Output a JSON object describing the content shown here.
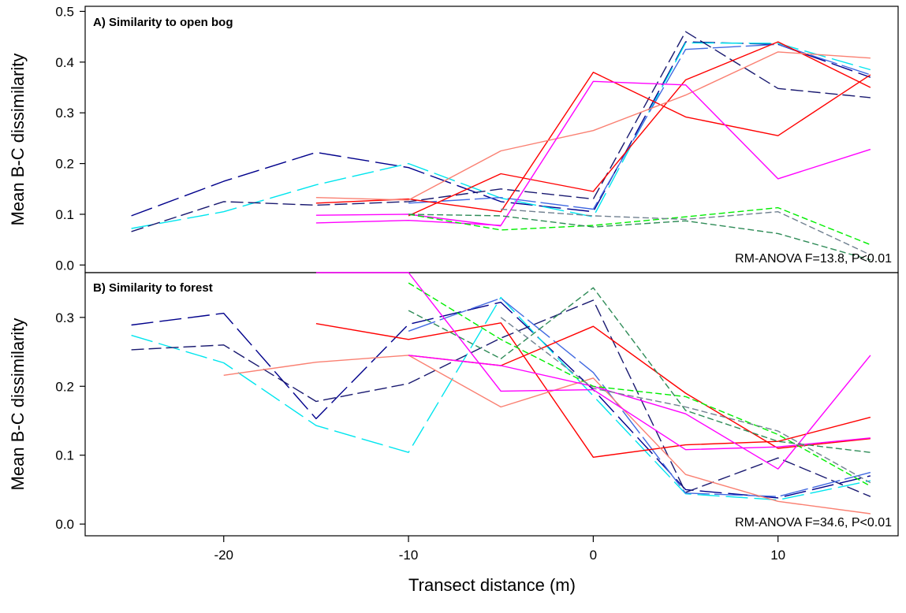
{
  "chart_data": [
    {
      "type": "line",
      "panel": "A",
      "title": "A) Similarity to open bog",
      "ylabel": "Mean B-C dissimilarity",
      "xlabel": "",
      "annotation": "RM-ANOVA F=13.8, P<0.01",
      "xlim": [
        -27.5,
        16.5
      ],
      "ylim": [
        -0.015,
        0.51
      ],
      "yticks": [
        0.0,
        0.1,
        0.2,
        0.3,
        0.4,
        0.5
      ],
      "ytick_labels": [
        "0.0",
        "0.1",
        "0.2",
        "0.3",
        "0.4",
        "0.5"
      ],
      "series": [
        {
          "color": "#00008b",
          "dash": "28,8",
          "x": [
            -25,
            -20,
            -15,
            -10,
            -5,
            0,
            5,
            10,
            15
          ],
          "y": [
            0.097,
            0.165,
            0.222,
            0.192,
            0.125,
            0.105,
            0.44,
            0.435,
            0.37
          ]
        },
        {
          "color": "#00e5ee",
          "dash": "28,8",
          "x": [
            -25,
            -20,
            -15,
            -10,
            -5,
            0,
            5,
            10,
            15
          ],
          "y": [
            0.072,
            0.105,
            0.158,
            0.2,
            0.132,
            0.095,
            0.438,
            0.437,
            0.385
          ]
        },
        {
          "color": "#191970",
          "dash": "16,6",
          "x": [
            -25,
            -20,
            -15,
            -10,
            -5,
            0,
            5,
            10,
            15
          ],
          "y": [
            0.066,
            0.125,
            0.118,
            0.125,
            0.15,
            0.13,
            0.46,
            0.348,
            0.33
          ]
        },
        {
          "color": "#4169e1",
          "dash": "36,6",
          "x": [
            -10,
            -5,
            0,
            5,
            10,
            15
          ],
          "y": [
            0.122,
            0.133,
            0.11,
            0.425,
            0.435,
            0.375
          ]
        },
        {
          "color": "#ff0000",
          "dash": "",
          "x": [
            -15,
            -10,
            -5,
            0,
            5,
            10,
            15
          ],
          "y": [
            0.122,
            0.13,
            0.105,
            0.38,
            0.292,
            0.255,
            0.375
          ]
        },
        {
          "color": "#ff0000",
          "dash": "",
          "x": [
            -10,
            -5,
            0,
            5,
            10,
            15
          ],
          "y": [
            0.097,
            0.18,
            0.145,
            0.365,
            0.44,
            0.35
          ]
        },
        {
          "color": "#fa8072",
          "dash": "",
          "x": [
            -15,
            -10,
            -5,
            0,
            5,
            10,
            15
          ],
          "y": [
            0.133,
            0.128,
            0.225,
            0.265,
            0.335,
            0.42,
            0.408
          ]
        },
        {
          "color": "#ff00ff",
          "dash": "",
          "x": [
            -15,
            -10,
            -5,
            0,
            5,
            10,
            15
          ],
          "y": [
            0.083,
            0.088,
            0.078,
            0.362,
            0.355,
            0.17,
            0.228
          ]
        },
        {
          "color": "#ff00ff",
          "dash": "",
          "x": [
            -15,
            -10,
            -5
          ],
          "y": [
            0.098,
            0.1,
            0.077
          ]
        },
        {
          "color": "#00ee00",
          "dash": "8,4",
          "x": [
            -10,
            -5,
            0,
            5,
            10,
            15
          ],
          "y": [
            0.1,
            0.069,
            0.078,
            0.095,
            0.113,
            0.04
          ]
        },
        {
          "color": "#2e8b57",
          "dash": "8,4",
          "x": [
            -10,
            -5,
            0,
            5,
            10,
            15
          ],
          "y": [
            0.1,
            0.097,
            0.075,
            0.087,
            0.062,
            0.01
          ]
        },
        {
          "color": "#708090",
          "dash": "8,4",
          "x": [
            -5,
            0,
            5,
            10,
            15
          ],
          "y": [
            0.11,
            0.097,
            0.09,
            0.105,
            0.02
          ]
        }
      ]
    },
    {
      "type": "line",
      "panel": "B",
      "title": "B) Similarity to forest",
      "ylabel": "Mean B-C dissimilarity",
      "xlabel": "Transect distance (m)",
      "annotation": "RM-ANOVA F=34.6, P<0.01",
      "xlim": [
        -27.5,
        16.5
      ],
      "ylim": [
        -0.017,
        0.365
      ],
      "yticks": [
        0.0,
        0.1,
        0.2,
        0.3
      ],
      "ytick_labels": [
        "0.0",
        "0.1",
        "0.2",
        "0.3"
      ],
      "xticks": [
        -20,
        -10,
        0,
        10
      ],
      "xtick_labels": [
        "-20",
        "-10",
        "0",
        "10"
      ],
      "series": [
        {
          "color": "#00008b",
          "dash": "28,8",
          "x": [
            -25,
            -20,
            -15,
            -10,
            -5,
            0,
            5,
            10,
            15
          ],
          "y": [
            0.289,
            0.306,
            0.153,
            0.29,
            0.322,
            0.195,
            0.05,
            0.038,
            0.07
          ]
        },
        {
          "color": "#00e5ee",
          "dash": "28,8",
          "x": [
            -25,
            -20,
            -15,
            -10,
            -5,
            0,
            5,
            10,
            15
          ],
          "y": [
            0.274,
            0.234,
            0.143,
            0.104,
            0.329,
            0.186,
            0.044,
            0.035,
            0.063
          ]
        },
        {
          "color": "#191970",
          "dash": "16,6",
          "x": [
            -25,
            -20,
            -15,
            -10,
            -5,
            0,
            5,
            10,
            15
          ],
          "y": [
            0.253,
            0.26,
            0.178,
            0.204,
            0.27,
            0.325,
            0.046,
            0.096,
            0.04
          ]
        },
        {
          "color": "#4169e1",
          "dash": "36,6",
          "x": [
            -10,
            -5,
            0,
            5,
            10,
            15
          ],
          "y": [
            0.28,
            0.328,
            0.22,
            0.045,
            0.04,
            0.075
          ]
        },
        {
          "color": "#ff0000",
          "dash": "",
          "x": [
            -15,
            -10,
            -5,
            0,
            5,
            10,
            15
          ],
          "y": [
            0.291,
            0.268,
            0.292,
            0.097,
            0.115,
            0.12,
            0.155
          ]
        },
        {
          "color": "#ff0000",
          "dash": "",
          "x": [
            -10,
            -5,
            0,
            5,
            10,
            15
          ],
          "y": [
            0.245,
            0.23,
            0.287,
            0.19,
            0.11,
            0.124
          ]
        },
        {
          "color": "#fa8072",
          "dash": "",
          "x": [
            -20,
            -15,
            -10,
            -5,
            0,
            5,
            10,
            15
          ],
          "y": [
            0.216,
            0.235,
            0.245,
            0.17,
            0.212,
            0.072,
            0.033,
            0.015
          ]
        },
        {
          "color": "#ff00ff",
          "dash": "",
          "x": [
            -15,
            -10,
            -5,
            0,
            5,
            10,
            15
          ],
          "y": [
            0.365,
            0.365,
            0.193,
            0.195,
            0.108,
            0.112,
            0.125
          ]
        },
        {
          "color": "#ff00ff",
          "dash": "",
          "x": [
            -10,
            -5,
            0,
            5,
            10,
            15
          ],
          "y": [
            0.245,
            0.23,
            0.2,
            0.16,
            0.08,
            0.245
          ]
        },
        {
          "color": "#00ee00",
          "dash": "8,4",
          "x": [
            -10,
            -5,
            0,
            5,
            10,
            15
          ],
          "y": [
            0.35,
            0.268,
            0.2,
            0.185,
            0.13,
            0.055
          ]
        },
        {
          "color": "#2e8b57",
          "dash": "8,4",
          "x": [
            -10,
            -5,
            0,
            5,
            10,
            15
          ],
          "y": [
            0.31,
            0.24,
            0.343,
            0.165,
            0.12,
            0.104
          ]
        },
        {
          "color": "#708090",
          "dash": "8,4",
          "x": [
            -5,
            0,
            5,
            10,
            15
          ],
          "y": [
            0.3,
            0.197,
            0.17,
            0.135,
            0.06
          ]
        }
      ]
    }
  ]
}
